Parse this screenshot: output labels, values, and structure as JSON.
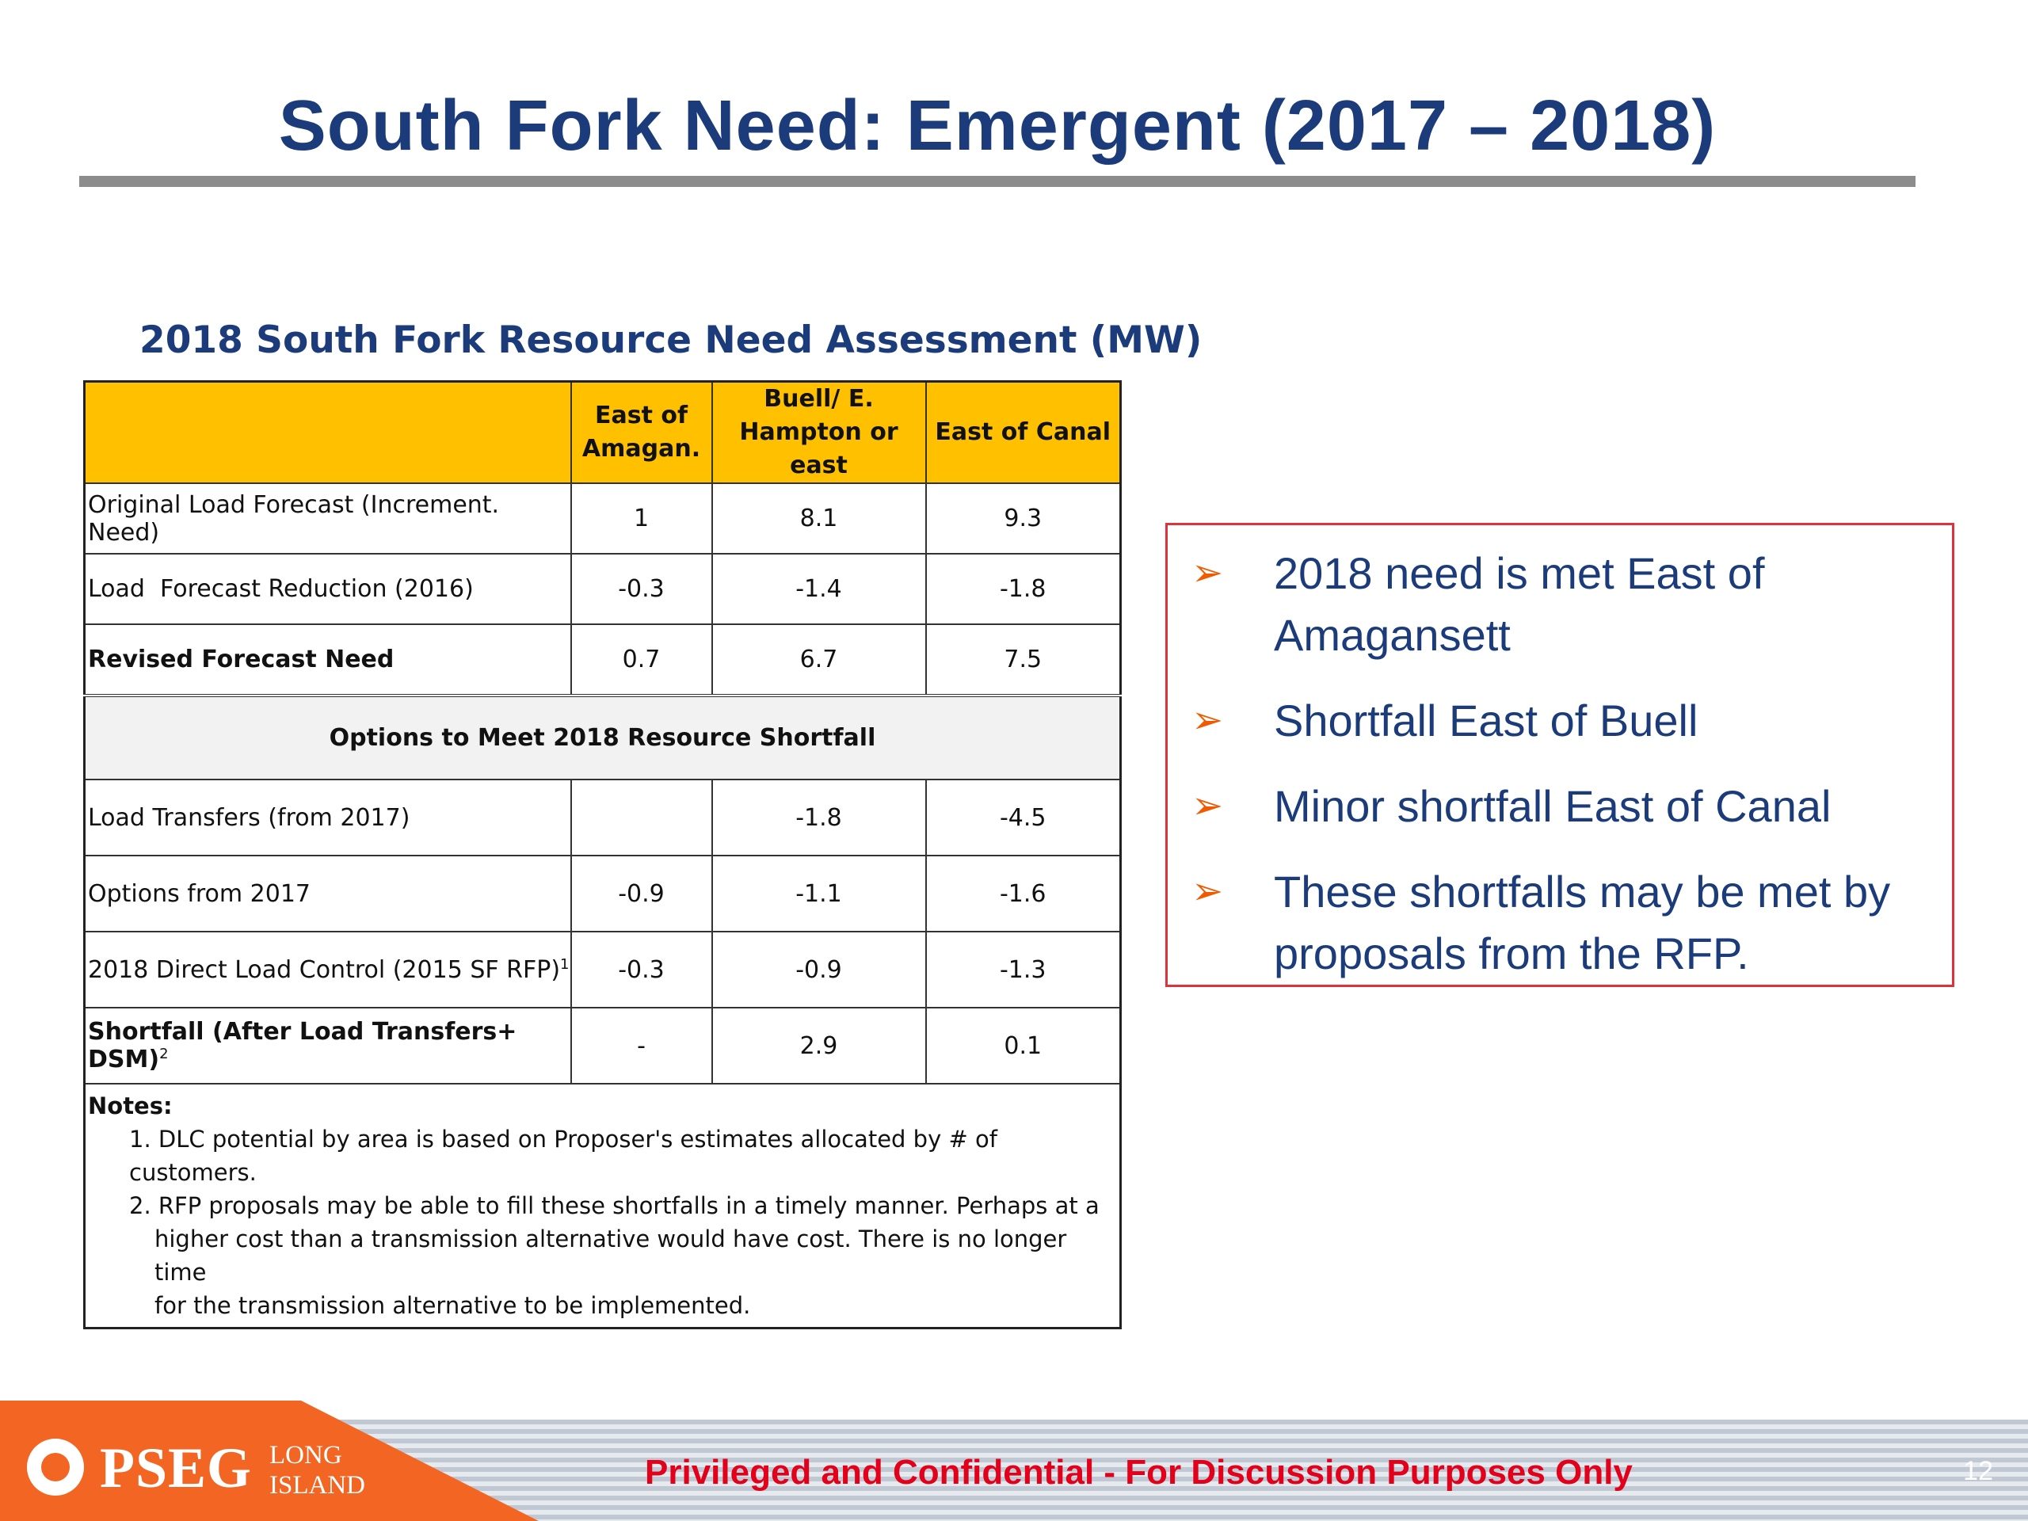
{
  "slide": {
    "title": "South Fork Need: Emergent (2017 – 2018)",
    "page_number": "12"
  },
  "table": {
    "caption": "2018 South Fork Resource Need Assessment (MW)",
    "headers": [
      "",
      "East of Amagan.",
      "Buell/ E. Hampton or east",
      "East of Canal"
    ],
    "header_lines": {
      "col1_line1": "East of",
      "col1_line2": "Amagan.",
      "col2_line1": "Buell/ E.",
      "col2_line2": "Hampton or east",
      "col3": "East of Canal"
    },
    "rows": [
      {
        "label": "Original Load Forecast (Increment. Need)",
        "values": [
          "1",
          "8.1",
          "9.3"
        ]
      },
      {
        "label": "Load  Forecast Reduction (2016)",
        "values": [
          "-0.3",
          "-1.4",
          "-1.8"
        ]
      },
      {
        "label": "Revised Forecast Need",
        "values": [
          "0.7",
          "6.7",
          "7.5"
        ]
      }
    ],
    "section_title": "Options to Meet 2018 Resource Shortfall",
    "option_rows": [
      {
        "label": "Load Transfers (from 2017)",
        "values": [
          "",
          "-1.8",
          "-4.5"
        ]
      },
      {
        "label": "Options from 2017",
        "values": [
          "-0.9",
          "-1.1",
          "-1.6"
        ]
      },
      {
        "label": "2018 Direct Load Control (2015 SF RFP)",
        "sup": "1",
        "values": [
          "-0.3",
          "-0.9",
          "-1.3"
        ]
      },
      {
        "label": "Shortfall (After Load Transfers+ DSM)",
        "sup": "2",
        "values": [
          "-",
          "2.9",
          "0.1"
        ]
      }
    ],
    "notes": {
      "heading": "Notes:",
      "note1": "1. DLC potential by area is based on Proposer's estimates allocated by # of customers.",
      "note2_line1": "2. RFP proposals may be able to fill these shortfalls in a timely manner.  Perhaps at a",
      "note2_line2": "higher cost than a transmission alternative would have cost.  There is no longer time",
      "note2_line3": "for the transmission alternative to be implemented."
    }
  },
  "callout": {
    "bullet_glyph": "➢",
    "bullets": [
      "2018 need is met East of Amagansett",
      "Shortfall East of Buell",
      "Minor shortfall East of Canal",
      "These shortfalls may be met by proposals from the RFP."
    ]
  },
  "footer": {
    "logo_main": "PSEG",
    "logo_sub_line1": "LONG",
    "logo_sub_line2": "ISLAND",
    "confidential": "Privileged and Confidential - For Discussion Purposes Only"
  },
  "colors": {
    "title": "#1b3b7a",
    "header_fill": "#ffc000",
    "callout_border": "#e0323c",
    "arrow": "#f05a00",
    "footer_orange": "#f26522",
    "footer_text": "#e2001a"
  }
}
